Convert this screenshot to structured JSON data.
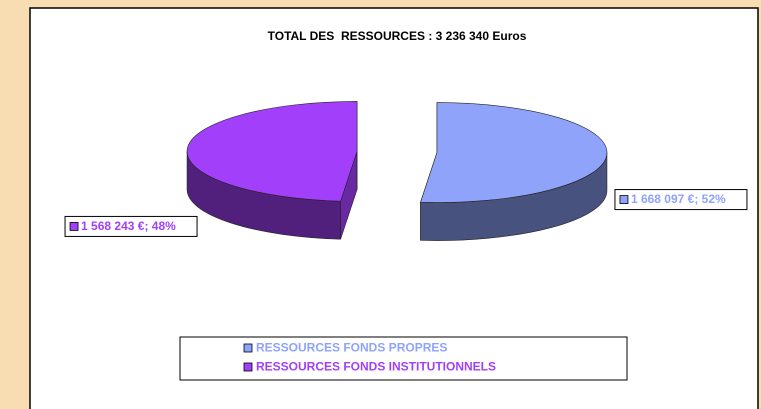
{
  "chart_data": {
    "type": "pie",
    "title": "TOTAL DES  RESSOURCES : 3 236 340 Euros",
    "categories": [
      "RESSOURCES FONDS PROPRES",
      "RESSOURCES FONDS INSTITUTIONNELS"
    ],
    "values": [
      1668097,
      1568243
    ],
    "value_labels": [
      "1 668 097 €; 52%",
      "1 568 243 €; 48%"
    ],
    "colors": [
      "#8fa3fb",
      "#a23ffa"
    ],
    "legend": "bottom"
  }
}
